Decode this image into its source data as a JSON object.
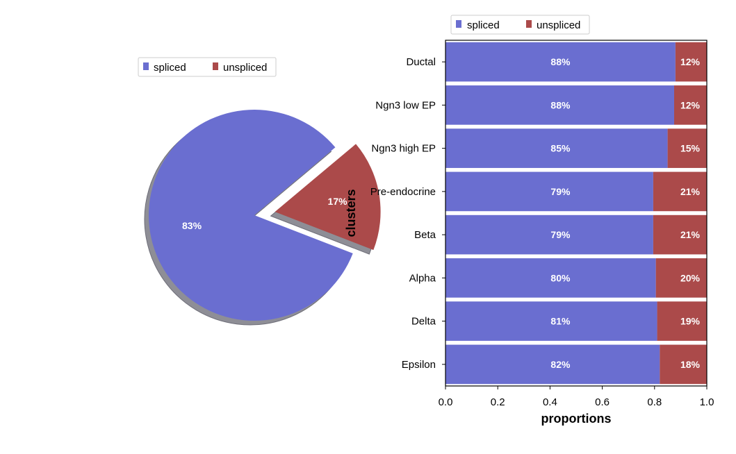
{
  "colors": {
    "spliced": "#6a6ed0",
    "unspliced": "#ab4a4a",
    "shadow": "#8e8e96"
  },
  "chart_data": [
    {
      "type": "pie",
      "labels": [
        "spliced",
        "unspliced"
      ],
      "values": [
        83,
        17
      ],
      "value_labels": [
        "83%",
        "17%"
      ],
      "exploded": [
        "unspliced"
      ],
      "shadow": true,
      "legend": {
        "position": "top",
        "entries": [
          "spliced",
          "unspliced"
        ]
      },
      "title": "",
      "xlabel": "",
      "ylabel": ""
    },
    {
      "type": "bar",
      "orientation": "horizontal",
      "stacked": true,
      "categories": [
        "Ductal",
        "Ngn3 low EP",
        "Ngn3 high EP",
        "Pre-endocrine",
        "Beta",
        "Alpha",
        "Delta",
        "Epsilon"
      ],
      "series": [
        {
          "name": "spliced",
          "values": [
            0.88,
            0.875,
            0.85,
            0.795,
            0.795,
            0.805,
            0.81,
            0.82
          ],
          "labels": [
            "88%",
            "88%",
            "85%",
            "79%",
            "79%",
            "80%",
            "81%",
            "82%"
          ]
        },
        {
          "name": "unspliced",
          "values": [
            0.12,
            0.125,
            0.15,
            0.205,
            0.205,
            0.195,
            0.19,
            0.18
          ],
          "labels": [
            "12%",
            "12%",
            "15%",
            "21%",
            "21%",
            "20%",
            "19%",
            "18%"
          ]
        }
      ],
      "xlabel": "proportions",
      "ylabel": "clusters",
      "xlim": [
        0,
        1
      ],
      "xticks": [
        0,
        0.2,
        0.4,
        0.6,
        0.8,
        1.0
      ],
      "xtick_labels": [
        "0.0",
        "0.2",
        "0.4",
        "0.6",
        "0.8",
        "1.0"
      ],
      "legend": {
        "position": "top-left",
        "entries": [
          "spliced",
          "unspliced"
        ]
      },
      "grid": false,
      "title": ""
    }
  ]
}
